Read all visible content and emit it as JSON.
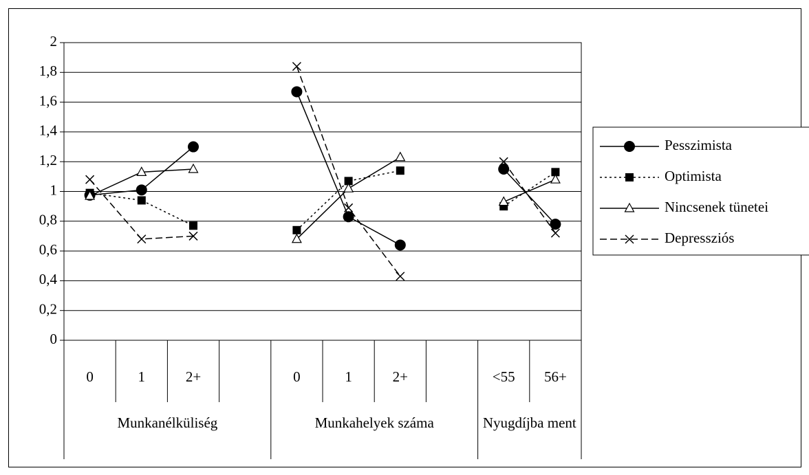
{
  "chart_data": {
    "type": "line",
    "categories": [
      "0",
      "1",
      "2+",
      null,
      "0",
      "1",
      "2+",
      null,
      "<55",
      "56+"
    ],
    "groups": [
      "Munkanélküliség",
      "Munkahelyek száma",
      "Nyugdíjba ment"
    ],
    "ylim": [
      0,
      2
    ],
    "yticks": [
      0,
      {
        "value": 0.2,
        "label": "0,2"
      },
      {
        "value": 0.4,
        "label": "0,4"
      },
      {
        "value": 0.6,
        "label": "0,6"
      },
      {
        "value": 0.8,
        "label": "0,8"
      },
      1,
      {
        "value": 1.2,
        "label": "1,2"
      },
      {
        "value": 1.4,
        "label": "1,4"
      },
      {
        "value": 1.6,
        "label": "1,6"
      },
      {
        "value": 1.8,
        "label": "1,8"
      },
      2
    ],
    "grid": true,
    "legend": "right",
    "series": [
      {
        "name": "Pesszimista",
        "color": "#000000",
        "marker": "circle",
        "dash": "solid",
        "values": [
          0.975,
          1.01,
          1.3,
          null,
          1.67,
          0.83,
          0.64,
          null,
          1.15,
          0.78
        ]
      },
      {
        "name": "Optimista",
        "color": "#000000",
        "marker": "square",
        "dash": "dotted",
        "values": [
          0.99,
          0.94,
          0.77,
          null,
          0.74,
          1.07,
          1.14,
          null,
          0.9,
          1.13
        ]
      },
      {
        "name": "Nincsenek tünetei",
        "color": "#000000",
        "marker": "triangle",
        "dash": "solid",
        "values": [
          0.97,
          1.13,
          1.15,
          null,
          0.68,
          1.02,
          1.23,
          null,
          0.93,
          1.08
        ]
      },
      {
        "name": "Depressziós",
        "color": "#000000",
        "marker": "x",
        "dash": "dashed",
        "values": [
          1.08,
          0.68,
          0.7,
          null,
          1.84,
          0.89,
          0.43,
          null,
          1.2,
          0.72
        ]
      }
    ]
  }
}
